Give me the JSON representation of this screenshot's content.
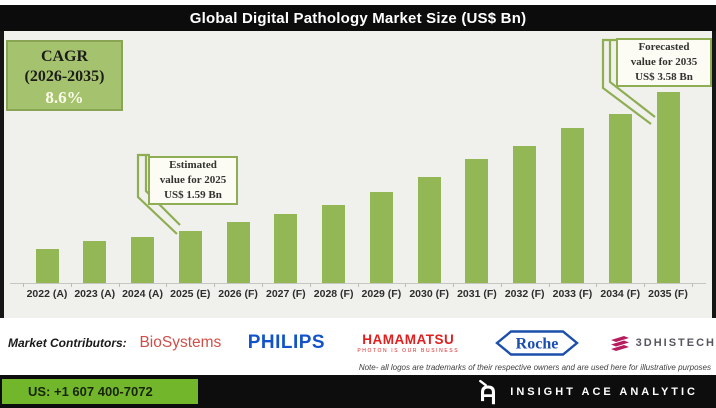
{
  "title": "Global Digital Pathology Market Size (US$ Bn)",
  "cagr_box": {
    "line1": "CAGR",
    "line2": "(2026-2035)",
    "value": "8.6%"
  },
  "callouts": {
    "estimated": {
      "lines": [
        "Estimated",
        "value for 2025",
        "US$ 1.59 Bn"
      ]
    },
    "forecasted": {
      "lines": [
        "Forecasted",
        "value for 2035",
        "US$ 3.58 Bn"
      ]
    }
  },
  "chart_data": {
    "type": "bar",
    "title": "Global Digital Pathology Market Size (US$ Bn)",
    "ylabel": "US$ Bn",
    "xlabel": "",
    "grid": false,
    "legend": "none",
    "y_axis_shown": false,
    "categories": [
      "2022 (A)",
      "2023 (A)",
      "2024 (A)",
      "2025 (E)",
      "2026 (F)",
      "2027 (F)",
      "2028 (F)",
      "2029 (F)",
      "2030 (F)",
      "2031 (F)",
      "2032 (F)",
      "2033 (F)",
      "2034 (F)",
      "2035 (F)"
    ],
    "values": [
      1.33,
      1.45,
      1.5,
      1.59,
      1.72,
      1.84,
      1.97,
      2.15,
      2.36,
      2.62,
      2.81,
      3.07,
      3.26,
      3.58
    ],
    "labeled_points": {
      "2025 (E)": 1.59,
      "2035 (F)": 3.58
    },
    "annotations": [
      "Estimated value for 2025 US$ 1.59 Bn",
      "Forecasted value for 2035 US$ 3.58 Bn",
      "CAGR (2026-2035) 8.6%"
    ],
    "bar_color": "#92b754"
  },
  "contributors": {
    "label": "Market Contributors:",
    "logos": [
      {
        "name": "BioSystems",
        "text": "BioSystems"
      },
      {
        "name": "Philips",
        "text": "PHILIPS"
      },
      {
        "name": "Hamamatsu",
        "text": "HAMAMATSU",
        "tagline": "PHOTON IS OUR BUSINESS"
      },
      {
        "name": "Roche",
        "text": "Roche"
      },
      {
        "name": "3DHISTECH",
        "text": "3DHISTECH"
      }
    ]
  },
  "note": "Note- all logos are trademarks of their respective owners and are used here for illustrative purposes",
  "footer": {
    "phone": "US: +1 607 400-7072",
    "brand": "INSIGHT ACE ANALYTIC"
  },
  "colors": {
    "bar_green": "#92b754",
    "cagr_green": "#a5c36e",
    "callout_border": "#8fae53",
    "footer_green": "#72b62c",
    "title_bg": "#0c0c0c",
    "chart_bg": "#f0f0ec",
    "biosystems_red": "#cf4f48",
    "philips_blue": "#1353c9",
    "hamamatsu_red": "#e01f1f",
    "roche_blue": "#1b4fad",
    "histech_magenta": "#b71d5e"
  }
}
